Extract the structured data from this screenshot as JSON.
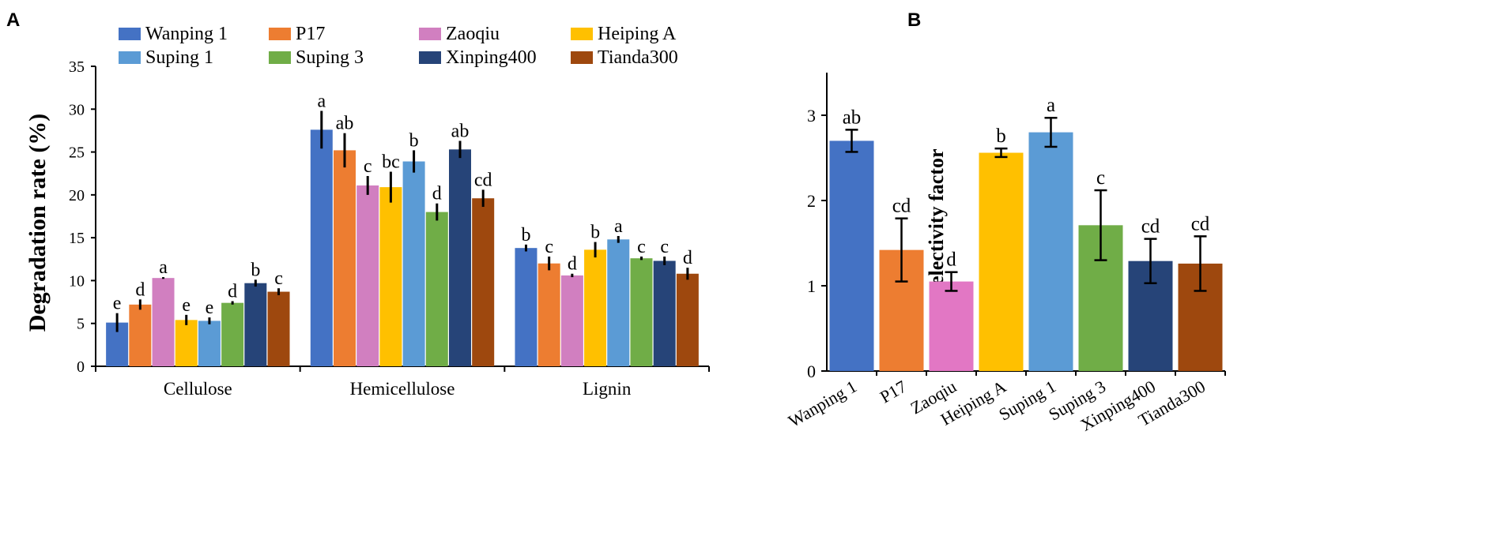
{
  "panel_labels": {
    "a": "A",
    "b": "B"
  },
  "chart_data": [
    {
      "type": "bar",
      "title": "",
      "xlabel": "",
      "ylabel": "Degradation rate (%)",
      "ylim": [
        0,
        35
      ],
      "yticks": [
        0,
        5,
        10,
        15,
        20,
        25,
        30,
        35
      ],
      "grid": false,
      "legend_position": "top",
      "categories": [
        "Cellulose",
        "Hemicellulose",
        "Lignin"
      ],
      "series": [
        {
          "name": "Wanping 1",
          "color": "#4472C4",
          "values": [
            5.1,
            27.6,
            13.8
          ],
          "errors": [
            1.1,
            2.2,
            0.4
          ],
          "labels": [
            "e",
            "a",
            "b"
          ]
        },
        {
          "name": "P17",
          "color": "#ED7D31",
          "values": [
            7.2,
            25.2,
            12.0
          ],
          "errors": [
            0.6,
            2.0,
            0.8
          ],
          "labels": [
            "d",
            "ab",
            "c"
          ]
        },
        {
          "name": "Zaoqiu",
          "color": "#D17FC0",
          "values": [
            10.3,
            21.1,
            10.6
          ],
          "errors": [
            0.1,
            1.1,
            0.2
          ],
          "labels": [
            "a",
            "c",
            "d"
          ]
        },
        {
          "name": "Heiping A",
          "color": "#FFC000",
          "values": [
            5.4,
            20.9,
            13.6
          ],
          "errors": [
            0.6,
            1.8,
            0.9
          ],
          "labels": [
            "e",
            "bc",
            "b"
          ]
        },
        {
          "name": "Suping 1",
          "color": "#5B9BD5",
          "values": [
            5.3,
            23.9,
            14.8
          ],
          "errors": [
            0.4,
            1.3,
            0.4
          ],
          "labels": [
            "e",
            "b",
            "a"
          ]
        },
        {
          "name": "Suping 3",
          "color": "#70AD47",
          "values": [
            7.4,
            18.0,
            12.6
          ],
          "errors": [
            0.2,
            1.0,
            0.2
          ],
          "labels": [
            "d",
            "d",
            "c"
          ]
        },
        {
          "name": "Xinping400",
          "color": "#264478",
          "values": [
            9.7,
            25.3,
            12.3
          ],
          "errors": [
            0.4,
            1.0,
            0.5
          ],
          "labels": [
            "b",
            "ab",
            "c"
          ]
        },
        {
          "name": "Tianda300",
          "color": "#9E480E",
          "values": [
            8.7,
            19.6,
            10.8
          ],
          "errors": [
            0.4,
            1.0,
            0.7
          ],
          "labels": [
            "c",
            "cd",
            "d"
          ]
        }
      ]
    },
    {
      "type": "bar",
      "title": "",
      "xlabel": "",
      "ylabel": "Selectivity factor",
      "ylim": [
        0,
        3.5
      ],
      "yticks": [
        0,
        1,
        2,
        3
      ],
      "grid": false,
      "categories": [
        "Wanping 1",
        "P17",
        "Zaoqiu",
        "Heiping A",
        "Suping 1",
        "Suping 3",
        "Xinping400",
        "Tianda300"
      ],
      "values": [
        2.7,
        1.42,
        1.05,
        2.56,
        2.8,
        1.71,
        1.29,
        1.26
      ],
      "errors": [
        0.13,
        0.37,
        0.11,
        0.05,
        0.17,
        0.41,
        0.26,
        0.32
      ],
      "labels": [
        "ab",
        "cd",
        "d",
        "b",
        "a",
        "c",
        "cd",
        "cd"
      ],
      "colors": [
        "#4472C4",
        "#ED7D31",
        "#E277C4",
        "#FFC000",
        "#5B9BD5",
        "#70AD47",
        "#264478",
        "#9E480E"
      ]
    }
  ]
}
